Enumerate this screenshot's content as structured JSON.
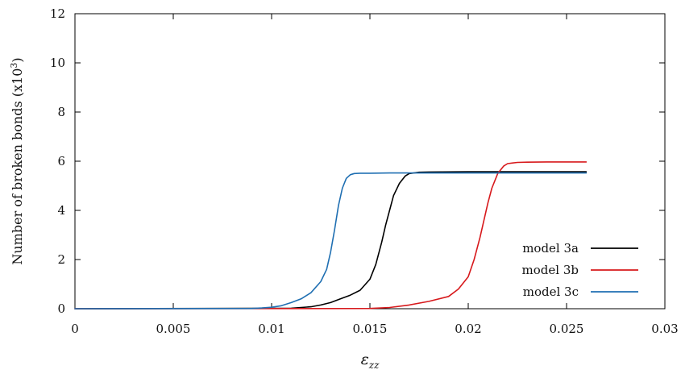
{
  "chart_data": {
    "type": "line",
    "xlabel": "ε_zz",
    "xlabel_main": "ε",
    "xlabel_sub": "zz",
    "ylabel": "Number of broken bonds (x10³)",
    "ylabel_main": "Number of broken bonds (x10",
    "ylabel_sup": "3",
    "ylabel_end": ")",
    "xlim": [
      0,
      0.03
    ],
    "ylim": [
      0,
      12
    ],
    "x_ticks": [
      0,
      0.005,
      0.01,
      0.015,
      0.02,
      0.025,
      0.03
    ],
    "x_tick_labels": [
      "0",
      "0.005",
      "0.01",
      "0.015",
      "0.02",
      "0.025",
      "0.03"
    ],
    "y_ticks": [
      0,
      2,
      4,
      6,
      8,
      10,
      12
    ],
    "y_tick_labels": [
      "0",
      "2",
      "4",
      "6",
      "8",
      "10",
      "12"
    ],
    "grid": false,
    "legend_position": "bottom-right",
    "series": [
      {
        "name": "model 3a",
        "color": "#000000",
        "x": [
          0,
          0.011,
          0.012,
          0.0125,
          0.013,
          0.0135,
          0.014,
          0.0145,
          0.015,
          0.0153,
          0.0156,
          0.0158,
          0.016,
          0.0162,
          0.0165,
          0.0168,
          0.017,
          0.0175,
          0.018,
          0.02,
          0.026
        ],
        "y": [
          0,
          0.02,
          0.08,
          0.15,
          0.25,
          0.4,
          0.55,
          0.75,
          1.2,
          1.8,
          2.7,
          3.4,
          4.0,
          4.6,
          5.1,
          5.4,
          5.5,
          5.55,
          5.56,
          5.57,
          5.57
        ]
      },
      {
        "name": "model 3b",
        "color": "#d7191c",
        "x": [
          0,
          0.015,
          0.016,
          0.017,
          0.018,
          0.019,
          0.0195,
          0.02,
          0.0203,
          0.0206,
          0.0208,
          0.021,
          0.0212,
          0.0215,
          0.0218,
          0.022,
          0.0225,
          0.023,
          0.024,
          0.026
        ],
        "y": [
          0,
          0.01,
          0.05,
          0.15,
          0.3,
          0.5,
          0.8,
          1.3,
          2.0,
          2.9,
          3.6,
          4.3,
          4.9,
          5.5,
          5.8,
          5.9,
          5.95,
          5.96,
          5.97,
          5.97
        ]
      },
      {
        "name": "model 3c",
        "color": "#1f6fb2",
        "x": [
          0,
          0.009,
          0.0095,
          0.01,
          0.0105,
          0.011,
          0.0115,
          0.012,
          0.0125,
          0.0128,
          0.013,
          0.0132,
          0.0134,
          0.0136,
          0.0138,
          0.014,
          0.0142,
          0.0145,
          0.015,
          0.016,
          0.026
        ],
        "y": [
          0,
          0.01,
          0.03,
          0.06,
          0.12,
          0.25,
          0.4,
          0.65,
          1.1,
          1.6,
          2.3,
          3.2,
          4.2,
          4.9,
          5.3,
          5.45,
          5.5,
          5.51,
          5.51,
          5.52,
          5.52
        ]
      }
    ]
  }
}
